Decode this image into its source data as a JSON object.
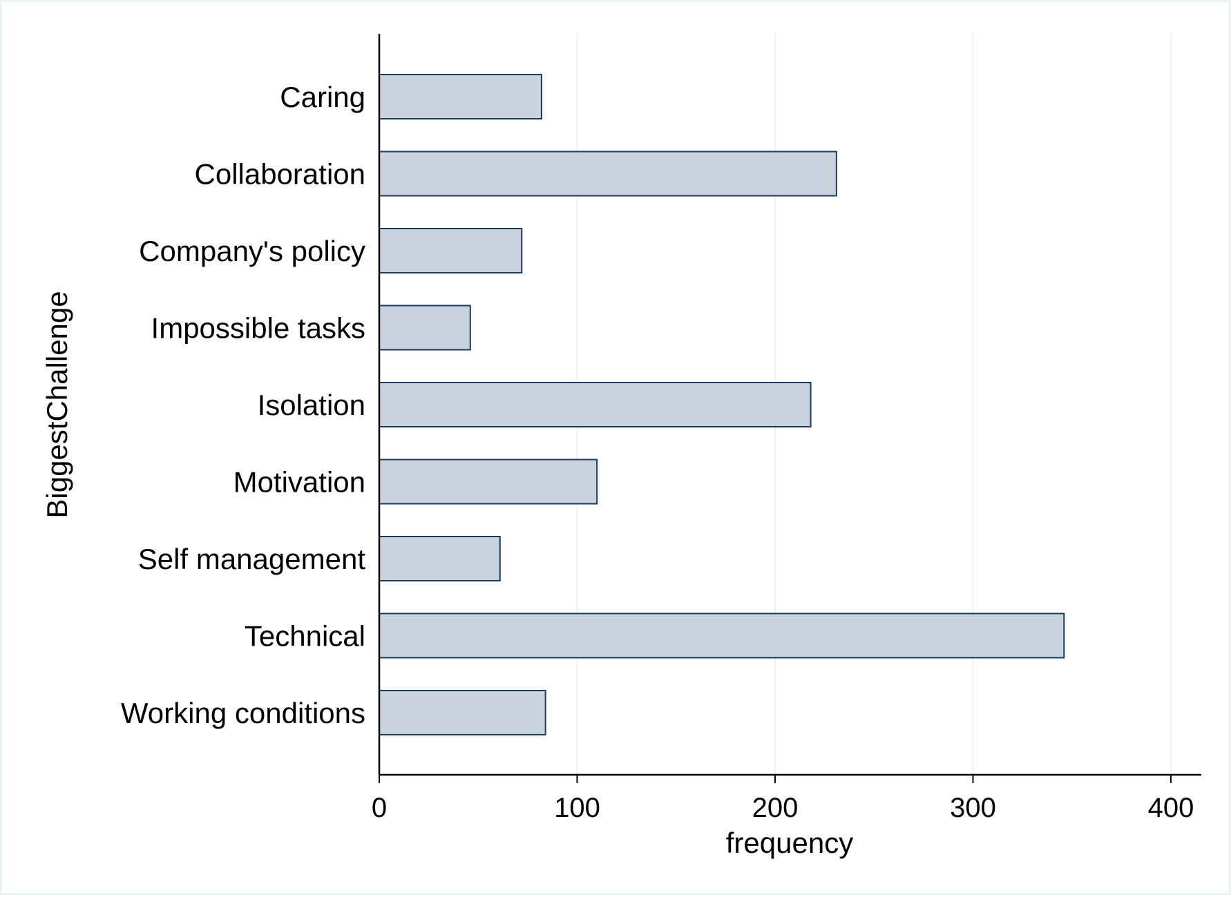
{
  "chart_data": {
    "type": "bar",
    "orientation": "horizontal",
    "categories": [
      "Caring",
      "Collaboration",
      "Company's policy",
      "Impossible tasks",
      "Isolation",
      "Motivation",
      "Self management",
      "Technical",
      "Working conditions"
    ],
    "values": [
      82,
      231,
      72,
      46,
      218,
      110,
      61,
      346,
      84
    ],
    "xlabel": "frequency",
    "ylabel": "BiggestChallenge",
    "xlim": [
      0,
      400
    ],
    "xticks": [
      "0",
      "100",
      "200",
      "300",
      "400"
    ],
    "grid": "vertical",
    "colors": {
      "bar_fill": "#c9d3dd",
      "bar_stroke": "#1a3a5c",
      "grid": "#eaf2f3",
      "axis": "#000000",
      "frame": "#eaf2f3"
    }
  }
}
